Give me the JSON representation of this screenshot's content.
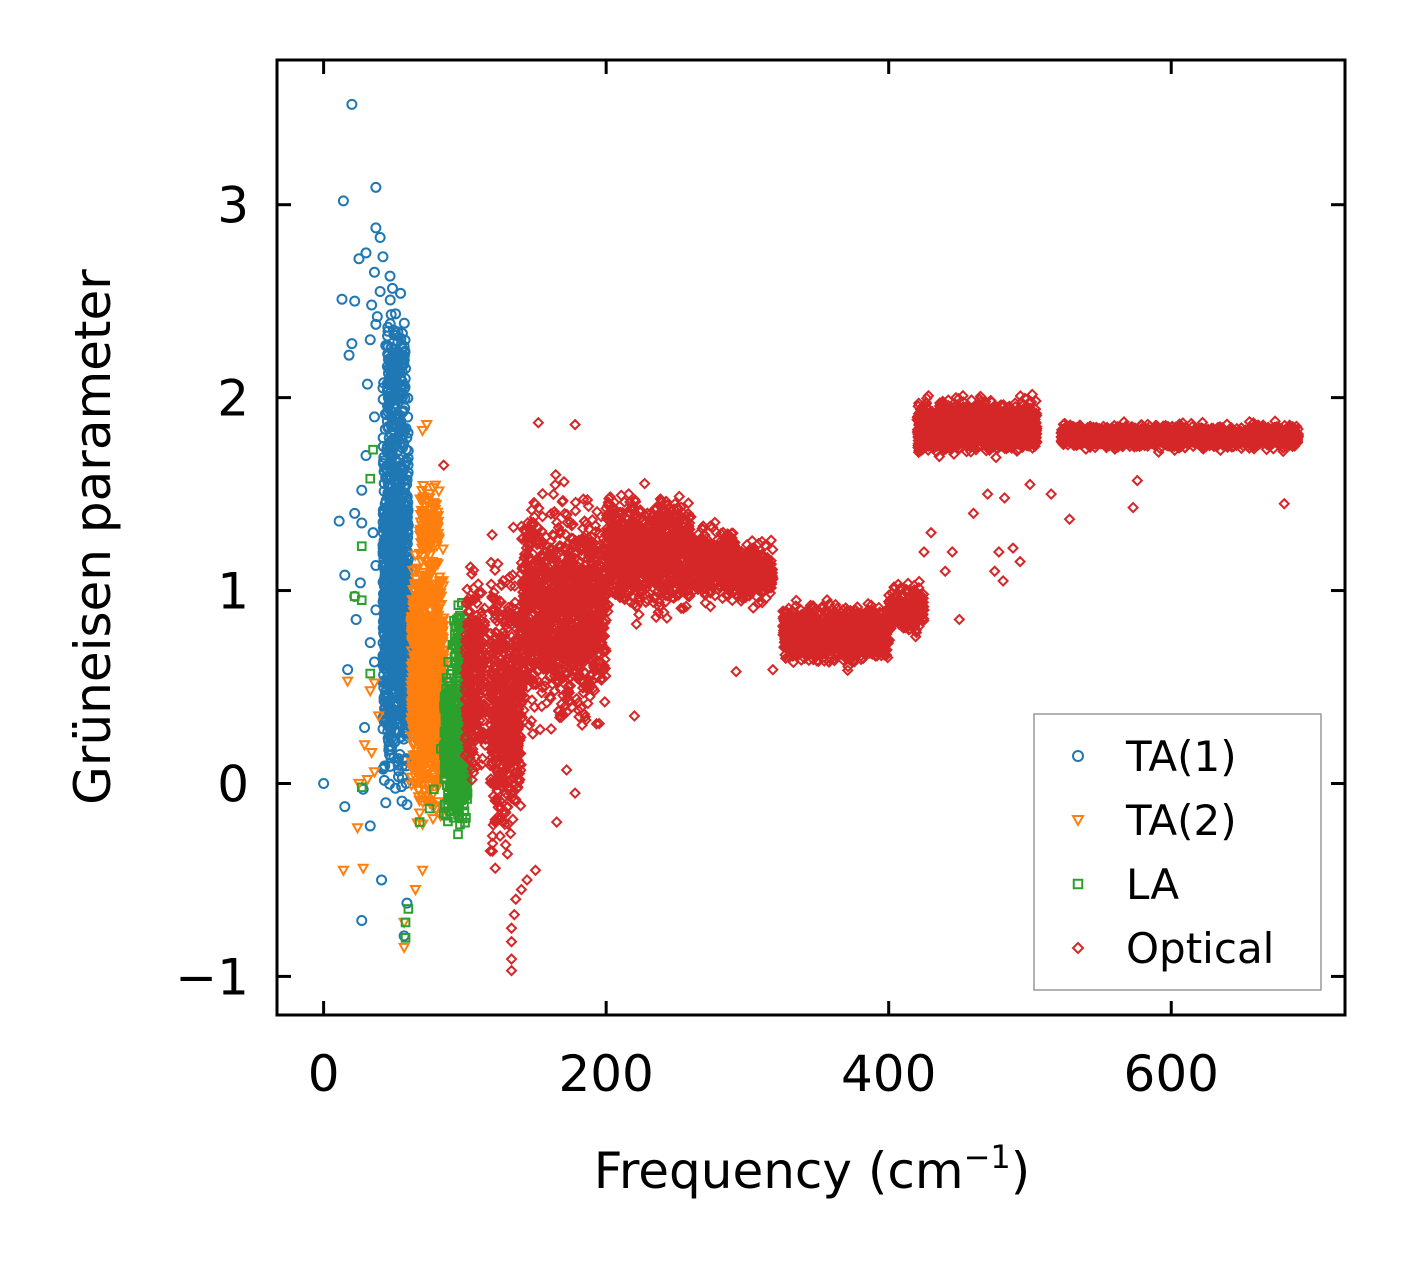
{
  "chart_data": {
    "type": "scatter",
    "title": "",
    "xlabel": "Frequency (cm",
    "xlabel_sup": "−1",
    "xlabel_end": ")",
    "ylabel": "Grüneisen parameter",
    "xlim": [
      -33,
      723
    ],
    "ylim": [
      -1.2,
      3.75
    ],
    "xticks": [
      0,
      200,
      400,
      600
    ],
    "xtick_labels": [
      "0",
      "200",
      "400",
      "600"
    ],
    "yticks": [
      -1,
      0,
      1,
      2,
      3
    ],
    "ytick_labels": [
      "−1",
      "0",
      "1",
      "2",
      "3"
    ],
    "legend_position": "lower-right",
    "series": [
      {
        "name": "TA(1)",
        "marker": "circle",
        "color": "#1f77b4",
        "clusters": [
          {
            "x_range": [
              42,
              60
            ],
            "y_center": 1.0,
            "y_spread": 1.5,
            "count": 1100
          },
          {
            "x_range": [
              45,
              58
            ],
            "y_center": 2.1,
            "y_spread": 0.55,
            "count": 160
          }
        ],
        "outliers": [
          [
            20,
            3.52
          ],
          [
            37,
            3.09
          ],
          [
            14,
            3.02
          ],
          [
            37,
            2.88
          ],
          [
            40,
            2.83
          ],
          [
            30,
            2.75
          ],
          [
            25,
            2.72
          ],
          [
            42,
            2.73
          ],
          [
            36,
            2.65
          ],
          [
            47,
            2.63
          ],
          [
            13,
            2.51
          ],
          [
            22,
            2.5
          ],
          [
            40,
            2.55
          ],
          [
            34,
            2.48
          ],
          [
            38,
            2.42
          ],
          [
            37,
            2.38
          ],
          [
            33,
            2.3
          ],
          [
            20,
            2.28
          ],
          [
            18,
            2.22
          ],
          [
            44,
            2.27
          ],
          [
            42,
            2.05
          ],
          [
            31,
            2.07
          ],
          [
            36,
            1.9
          ],
          [
            30,
            1.7
          ],
          [
            27,
            1.52
          ],
          [
            22,
            1.4
          ],
          [
            11,
            1.36
          ],
          [
            27,
            1.35
          ],
          [
            35,
            1.3
          ],
          [
            37,
            1.13
          ],
          [
            15,
            1.08
          ],
          [
            26,
            1.04
          ],
          [
            22,
            0.97
          ],
          [
            23,
            0.85
          ],
          [
            37,
            0.9
          ],
          [
            33,
            0.73
          ],
          [
            36,
            0.63
          ],
          [
            17,
            0.59
          ],
          [
            29,
            0.29
          ],
          [
            0,
            0
          ],
          [
            28,
            -0.03
          ],
          [
            33,
            -0.22
          ],
          [
            15,
            -0.12
          ],
          [
            44,
            -0.1
          ],
          [
            41,
            -0.5
          ],
          [
            27,
            -0.71
          ],
          [
            57,
            -0.79
          ],
          [
            59,
            -0.62
          ]
        ]
      },
      {
        "name": "TA(2)",
        "marker": "triangle-down",
        "color": "#ff7f0e",
        "clusters": [
          {
            "x_range": [
              62,
              85
            ],
            "y_center": 0.55,
            "y_spread": 1.0,
            "count": 1000
          },
          {
            "x_range": [
              68,
              82
            ],
            "y_center": 1.35,
            "y_spread": 0.3,
            "count": 120
          }
        ],
        "outliers": [
          [
            70,
            1.83
          ],
          [
            73,
            1.86
          ],
          [
            17,
            0.53
          ],
          [
            36,
            0.52
          ],
          [
            33,
            0.48
          ],
          [
            39,
            0.35
          ],
          [
            29,
            0.2
          ],
          [
            34,
            0.16
          ],
          [
            36,
            0.06
          ],
          [
            25,
            0
          ],
          [
            31,
            0.02
          ],
          [
            24,
            -0.23
          ],
          [
            14,
            -0.45
          ],
          [
            28,
            -0.44
          ],
          [
            57,
            -0.85
          ],
          [
            57,
            -0.72
          ],
          [
            65,
            -0.55
          ],
          [
            70,
            -0.45
          ]
        ]
      },
      {
        "name": "LA",
        "marker": "square",
        "color": "#2ca02c",
        "clusters": [
          {
            "x_range": [
              85,
              102
            ],
            "y_center": 0.2,
            "y_spread": 0.6,
            "count": 500
          },
          {
            "x_range": [
              92,
              102
            ],
            "y_center": 0.75,
            "y_spread": 0.3,
            "count": 80
          }
        ],
        "outliers": [
          [
            35,
            1.73
          ],
          [
            33,
            1.58
          ],
          [
            27,
            1.23
          ],
          [
            22,
            0.97
          ],
          [
            27,
            0.95
          ],
          [
            33,
            0.57
          ],
          [
            27,
            -0.02
          ],
          [
            58,
            -0.72
          ],
          [
            58,
            -0.8
          ],
          [
            60,
            -0.65
          ],
          [
            68,
            -0.2
          ],
          [
            75,
            -0.13
          ],
          [
            78,
            -0.03
          ],
          [
            83,
            0.18
          ]
        ]
      },
      {
        "name": "Optical",
        "marker": "diamond",
        "color": "#d62728",
        "clusters": [
          {
            "x_range": [
              100,
              115
            ],
            "y_center": 0.55,
            "y_spread": 0.8,
            "count": 300
          },
          {
            "x_range": [
              118,
              140
            ],
            "y_center": 0.4,
            "y_spread": 1.05,
            "count": 600
          },
          {
            "x_range": [
              140,
              200
            ],
            "y_center": 0.9,
            "y_spread": 0.85,
            "count": 1300
          },
          {
            "x_range": [
              200,
              260
            ],
            "y_center": 1.2,
            "y_spread": 0.45,
            "count": 900
          },
          {
            "x_range": [
              260,
              290
            ],
            "y_center": 1.15,
            "y_spread": 0.3,
            "count": 350
          },
          {
            "x_range": [
              290,
              318
            ],
            "y_center": 1.1,
            "y_spread": 0.25,
            "count": 250
          },
          {
            "x_range": [
              325,
              400
            ],
            "y_center": 0.78,
            "y_spread": 0.22,
            "count": 1100
          },
          {
            "x_range": [
              400,
              425
            ],
            "y_center": 0.9,
            "y_spread": 0.2,
            "count": 200
          },
          {
            "x_range": [
              420,
              505
            ],
            "y_center": 1.85,
            "y_spread": 0.2,
            "count": 1400
          },
          {
            "x_range": [
              522,
              690
            ],
            "y_center": 1.8,
            "y_spread": 0.09,
            "count": 1800
          }
        ],
        "outliers": [
          [
            133,
            -0.97
          ],
          [
            133,
            -0.91
          ],
          [
            133,
            -0.82
          ],
          [
            133,
            -0.75
          ],
          [
            135,
            -0.68
          ],
          [
            136,
            -0.6
          ],
          [
            140,
            -0.55
          ],
          [
            144,
            -0.5
          ],
          [
            150,
            -0.45
          ],
          [
            118,
            -0.35
          ],
          [
            165,
            -0.2
          ],
          [
            172,
            0.07
          ],
          [
            178,
            -0.05
          ],
          [
            152,
            1.87
          ],
          [
            178,
            1.86
          ],
          [
            85,
            1.65
          ],
          [
            220,
            0.35
          ],
          [
            188,
            0.52
          ],
          [
            292,
            0.58
          ],
          [
            318,
            0.59
          ],
          [
            415,
            0.8
          ],
          [
            425,
            1.2
          ],
          [
            430,
            1.3
          ],
          [
            440,
            1.1
          ],
          [
            445,
            1.2
          ],
          [
            450,
            0.85
          ],
          [
            460,
            1.4
          ],
          [
            470,
            1.5
          ],
          [
            475,
            1.1
          ],
          [
            478,
            1.2
          ],
          [
            481,
            1.05
          ],
          [
            488,
            1.22
          ],
          [
            493,
            1.15
          ],
          [
            482,
            1.48
          ],
          [
            500,
            1.55
          ],
          [
            528,
            1.37
          ],
          [
            573,
            1.43
          ],
          [
            576,
            1.57
          ],
          [
            515,
            1.5
          ],
          [
            680,
            1.45
          ]
        ]
      }
    ]
  }
}
